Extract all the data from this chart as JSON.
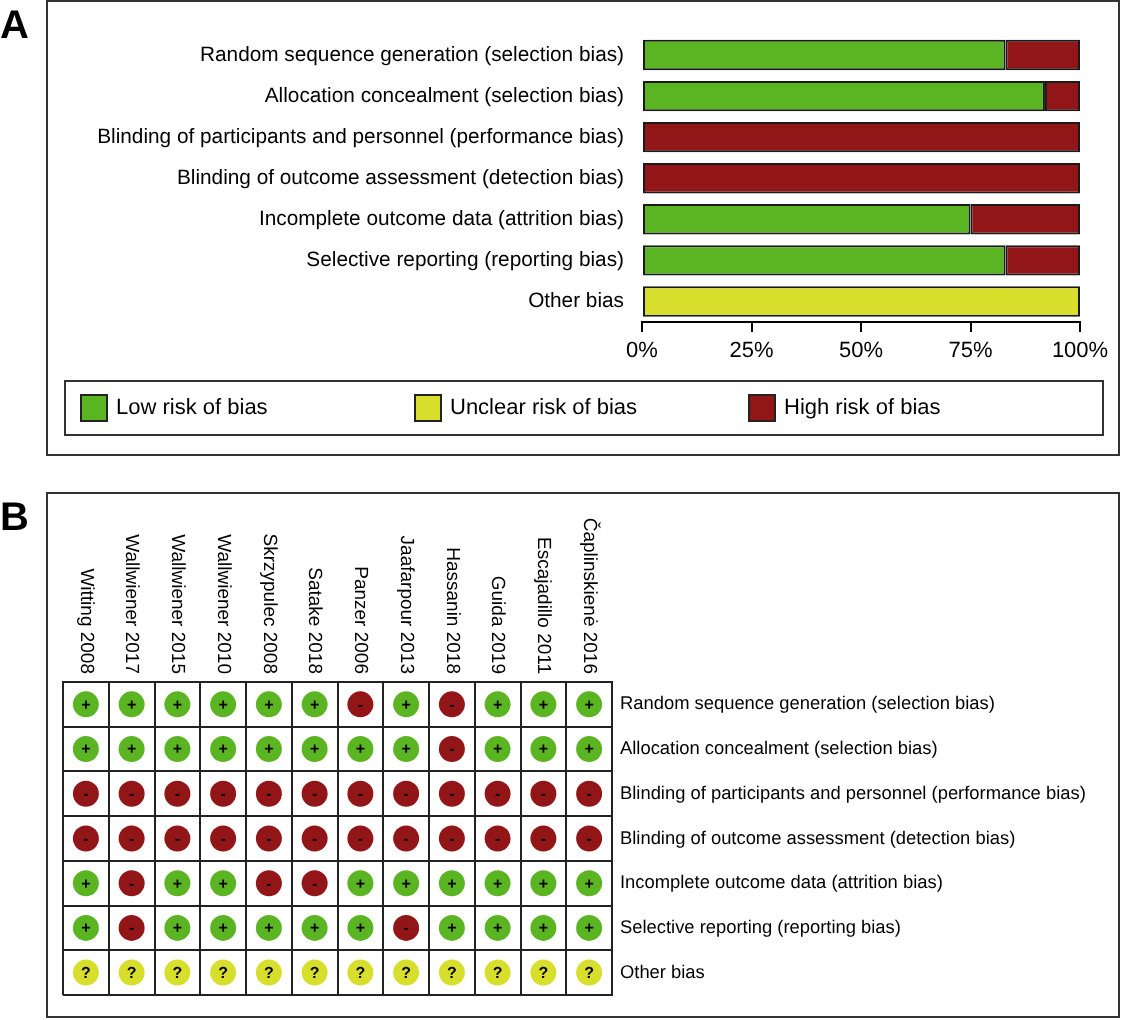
{
  "chart_data": [
    {
      "type": "bar",
      "title": "A",
      "orientation": "horizontal",
      "stacked": true,
      "categories": [
        "Random sequence generation (selection bias)",
        "Allocation concealment (selection bias)",
        "Blinding of participants and personnel (performance bias)",
        "Blinding of outcome assessment (detection bias)",
        "Incomplete outcome data (attrition bias)",
        "Selective reporting (reporting bias)",
        "Other bias"
      ],
      "series": [
        {
          "name": "Low risk of bias",
          "color": "#5bb523",
          "values": [
            83,
            92,
            0,
            0,
            75,
            83,
            0
          ]
        },
        {
          "name": "Unclear risk of bias",
          "color": "#d7de2b",
          "values": [
            0,
            0,
            0,
            0,
            0,
            0,
            100
          ]
        },
        {
          "name": "High risk of bias",
          "color": "#921518",
          "values": [
            17,
            8,
            100,
            100,
            25,
            17,
            0
          ]
        }
      ],
      "xlim": [
        0,
        100
      ],
      "xticks": [
        {
          "value": 0,
          "label": "0%"
        },
        {
          "value": 25,
          "label": "25%"
        },
        {
          "value": 50,
          "label": "50%"
        },
        {
          "value": 75,
          "label": "75%"
        },
        {
          "value": 100,
          "label": "100%"
        }
      ],
      "legend": "bottom"
    },
    {
      "type": "heatmap",
      "title": "B",
      "categories": [
        "Witting 2008",
        "Wallwiener 2017",
        "Wallwiener 2015",
        "Wallwiener 2010",
        "Skrzypulec 2008",
        "Satake 2018",
        "Panzer 2006",
        "Jaafarpour 2013",
        "Hassanin 2018",
        "Guida 2019",
        "Escajadillo 2011",
        "Čaplinskienė 2016"
      ],
      "y_categories": [
        "Random sequence generation (selection bias)",
        "Allocation concealment (selection bias)",
        "Blinding of participants and personnel (performance bias)",
        "Blinding of outcome assessment (detection bias)",
        "Incomplete outcome data (attrition bias)",
        "Selective reporting (reporting bias)",
        "Other bias"
      ],
      "cells": [
        [
          "+",
          "+",
          "+",
          "+",
          "+",
          "+",
          "-",
          "+",
          "-",
          "+",
          "+",
          "+"
        ],
        [
          "+",
          "+",
          "+",
          "+",
          "+",
          "+",
          "+",
          "+",
          "-",
          "+",
          "+",
          "+"
        ],
        [
          "-",
          "-",
          "-",
          "-",
          "-",
          "-",
          "-",
          "-",
          "-",
          "-",
          "-",
          "-"
        ],
        [
          "-",
          "-",
          "-",
          "-",
          "-",
          "-",
          "-",
          "-",
          "-",
          "-",
          "-",
          "-"
        ],
        [
          "+",
          "-",
          "+",
          "+",
          "-",
          "-",
          "+",
          "+",
          "+",
          "+",
          "+",
          "+"
        ],
        [
          "+",
          "-",
          "+",
          "+",
          "+",
          "+",
          "+",
          "-",
          "+",
          "+",
          "+",
          "+"
        ],
        [
          "?",
          "?",
          "?",
          "?",
          "?",
          "?",
          "?",
          "?",
          "?",
          "?",
          "?",
          "?"
        ]
      ],
      "colors": [
        [
          "#5bb523",
          "#5bb523",
          "#5bb523",
          "#5bb523",
          "#5bb523",
          "#5bb523",
          "#921518",
          "#5bb523",
          "#921518",
          "#5bb523",
          "#5bb523",
          "#5bb523"
        ],
        [
          "#5bb523",
          "#5bb523",
          "#5bb523",
          "#5bb523",
          "#5bb523",
          "#5bb523",
          "#5bb523",
          "#5bb523",
          "#921518",
          "#5bb523",
          "#5bb523",
          "#5bb523"
        ],
        [
          "#921518",
          "#921518",
          "#921518",
          "#921518",
          "#921518",
          "#921518",
          "#921518",
          "#921518",
          "#921518",
          "#921518",
          "#921518",
          "#921518"
        ],
        [
          "#921518",
          "#921518",
          "#921518",
          "#921518",
          "#921518",
          "#921518",
          "#921518",
          "#921518",
          "#921518",
          "#921518",
          "#921518",
          "#921518"
        ],
        [
          "#5bb523",
          "#921518",
          "#5bb523",
          "#5bb523",
          "#921518",
          "#921518",
          "#5bb523",
          "#5bb523",
          "#5bb523",
          "#5bb523",
          "#5bb523",
          "#5bb523"
        ],
        [
          "#5bb523",
          "#921518",
          "#5bb523",
          "#5bb523",
          "#5bb523",
          "#5bb523",
          "#5bb523",
          "#921518",
          "#5bb523",
          "#5bb523",
          "#5bb523",
          "#5bb523"
        ],
        [
          "#d7de2b",
          "#d7de2b",
          "#d7de2b",
          "#d7de2b",
          "#d7de2b",
          "#d7de2b",
          "#d7de2b",
          "#d7de2b",
          "#d7de2b",
          "#d7de2b",
          "#d7de2b",
          "#d7de2b"
        ]
      ]
    }
  ]
}
